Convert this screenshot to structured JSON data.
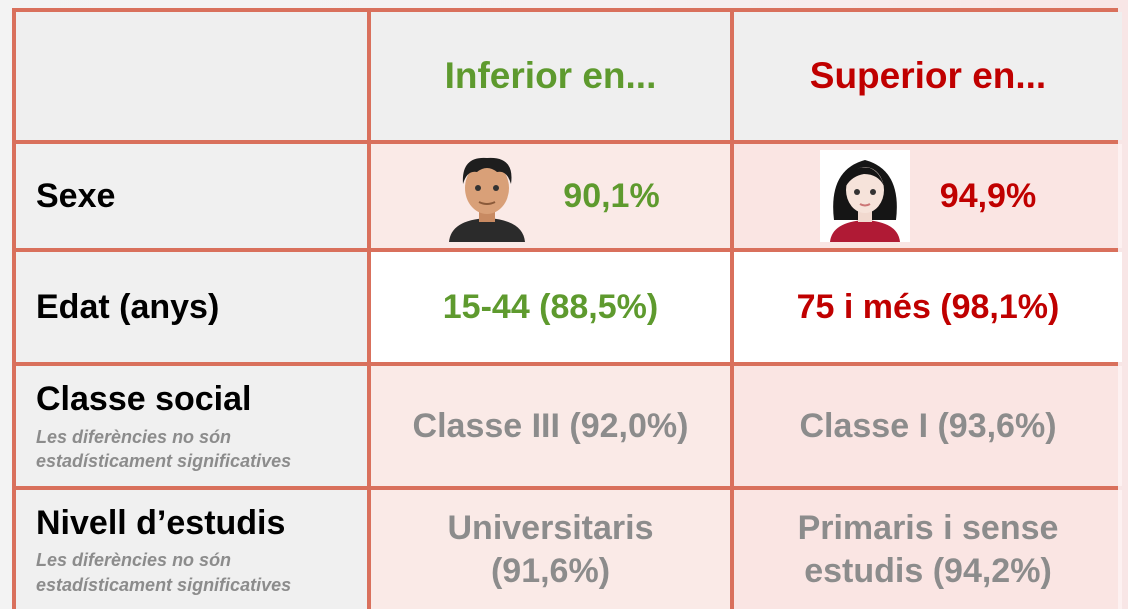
{
  "table": {
    "header": [
      "Inferior en...",
      "Superior en..."
    ],
    "rows": [
      {
        "label": "Sexe",
        "inferior": "90,1%",
        "superior": "94,9%"
      },
      {
        "label": "Edat (anys)",
        "inferior": "15-44 (88,5%)",
        "superior": "75 i més (98,1%)"
      },
      {
        "label": "Classe social",
        "note": "Les diferències no són estadísticament significatives",
        "inferior": "Classe III (92,0%)",
        "superior": "Classe I (93,6%)"
      },
      {
        "label": "Nivell d’estudis",
        "note": "Les diferències no són estadísticament significatives",
        "inferior": "Universitaris (91,6%)",
        "superior": "Primaris i sense estudis (94,2%)"
      }
    ]
  }
}
